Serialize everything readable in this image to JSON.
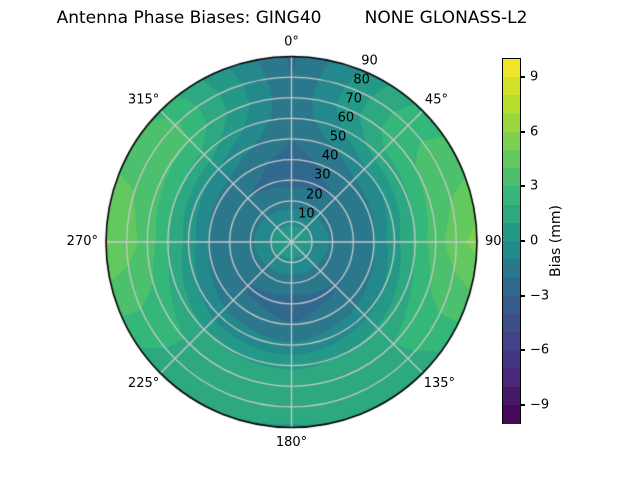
{
  "title": "Antenna Phase Biases: GING40        NONE GLONASS-L2",
  "colors": {
    "background": "#ffffff",
    "grid_line": "#c8c8c8",
    "outline": "#000000"
  },
  "chart_data": {
    "type": "heatmap",
    "projection": "polar",
    "title": "Antenna Phase Biases: GING40        NONE GLONASS-L2",
    "theta_direction": "clockwise",
    "theta_zero": "top",
    "theta_ticks": [
      {
        "deg": 0,
        "label": "0°"
      },
      {
        "deg": 45,
        "label": "45°"
      },
      {
        "deg": 90,
        "label": "90"
      },
      {
        "deg": 135,
        "label": "135°"
      },
      {
        "deg": 180,
        "label": "180°"
      },
      {
        "deg": 225,
        "label": "225°"
      },
      {
        "deg": 270,
        "label": "270°"
      },
      {
        "deg": 315,
        "label": "315°"
      }
    ],
    "r_ticks": [
      {
        "value": 10,
        "label": "10"
      },
      {
        "value": 20,
        "label": "20"
      },
      {
        "value": 30,
        "label": "30"
      },
      {
        "value": 40,
        "label": "40"
      },
      {
        "value": 50,
        "label": "50"
      },
      {
        "value": 60,
        "label": "60"
      },
      {
        "value": 70,
        "label": "70"
      },
      {
        "value": 80,
        "label": "80"
      },
      {
        "value": 90,
        "label": "90"
      }
    ],
    "r_label_angle_deg": 22.5,
    "value_range": [
      -10,
      10
    ],
    "band_step_mm": 1,
    "grid": {
      "azimuth_deg": [
        0,
        45,
        90,
        135,
        180,
        225,
        270,
        315
      ],
      "elevation_deg": [
        90,
        80,
        70,
        60,
        50,
        40,
        30,
        20,
        10,
        0
      ],
      "bias_mm": [
        [
          0.6,
          0.6,
          0.6,
          0.6,
          0.6,
          0.6,
          0.6,
          0.6
        ],
        [
          -0.2,
          -0.1,
          0.0,
          -0.1,
          -0.2,
          -0.1,
          0.0,
          -0.1
        ],
        [
          -1.6,
          -1.4,
          -1.2,
          -1.5,
          -1.6,
          -1.5,
          -1.2,
          -1.4
        ],
        [
          -2.3,
          -2.0,
          -1.8,
          -2.1,
          -2.3,
          -2.1,
          -1.8,
          -2.0
        ],
        [
          -2.4,
          -1.4,
          -1.0,
          -1.5,
          -2.0,
          -1.6,
          -1.0,
          -1.4
        ],
        [
          -2.0,
          -0.2,
          0.6,
          -0.3,
          -0.8,
          -0.5,
          0.6,
          0.0
        ],
        [
          -1.8,
          1.6,
          2.2,
          1.2,
          0.8,
          1.0,
          2.2,
          1.8
        ],
        [
          -1.8,
          2.7,
          3.6,
          2.0,
          1.8,
          1.9,
          3.6,
          3.0
        ],
        [
          -2.0,
          2.7,
          4.6,
          1.8,
          1.5,
          1.7,
          4.5,
          3.2
        ],
        [
          -2.2,
          2.3,
          5.4,
          1.2,
          0.9,
          1.1,
          5.1,
          2.8
        ]
      ]
    },
    "colorbar": {
      "label": "Bias (mm)",
      "min": -10,
      "max": 10,
      "n_bands": 20,
      "ticks": [
        {
          "value": 9,
          "label": "9"
        },
        {
          "value": 6,
          "label": "6"
        },
        {
          "value": 3,
          "label": "3"
        },
        {
          "value": 0,
          "label": "0"
        },
        {
          "value": -3,
          "label": "−3"
        },
        {
          "value": -6,
          "label": "−6"
        },
        {
          "value": -9,
          "label": "−9"
        }
      ]
    },
    "colormap": {
      "name": "viridis",
      "anchors": [
        [
          0.0,
          "#440154"
        ],
        [
          0.125,
          "#482878"
        ],
        [
          0.25,
          "#3e4a89"
        ],
        [
          0.375,
          "#31688e"
        ],
        [
          0.5,
          "#21918c"
        ],
        [
          0.625,
          "#35b779"
        ],
        [
          0.75,
          "#6ece58"
        ],
        [
          0.875,
          "#b5de2b"
        ],
        [
          1.0,
          "#fde725"
        ]
      ]
    }
  }
}
